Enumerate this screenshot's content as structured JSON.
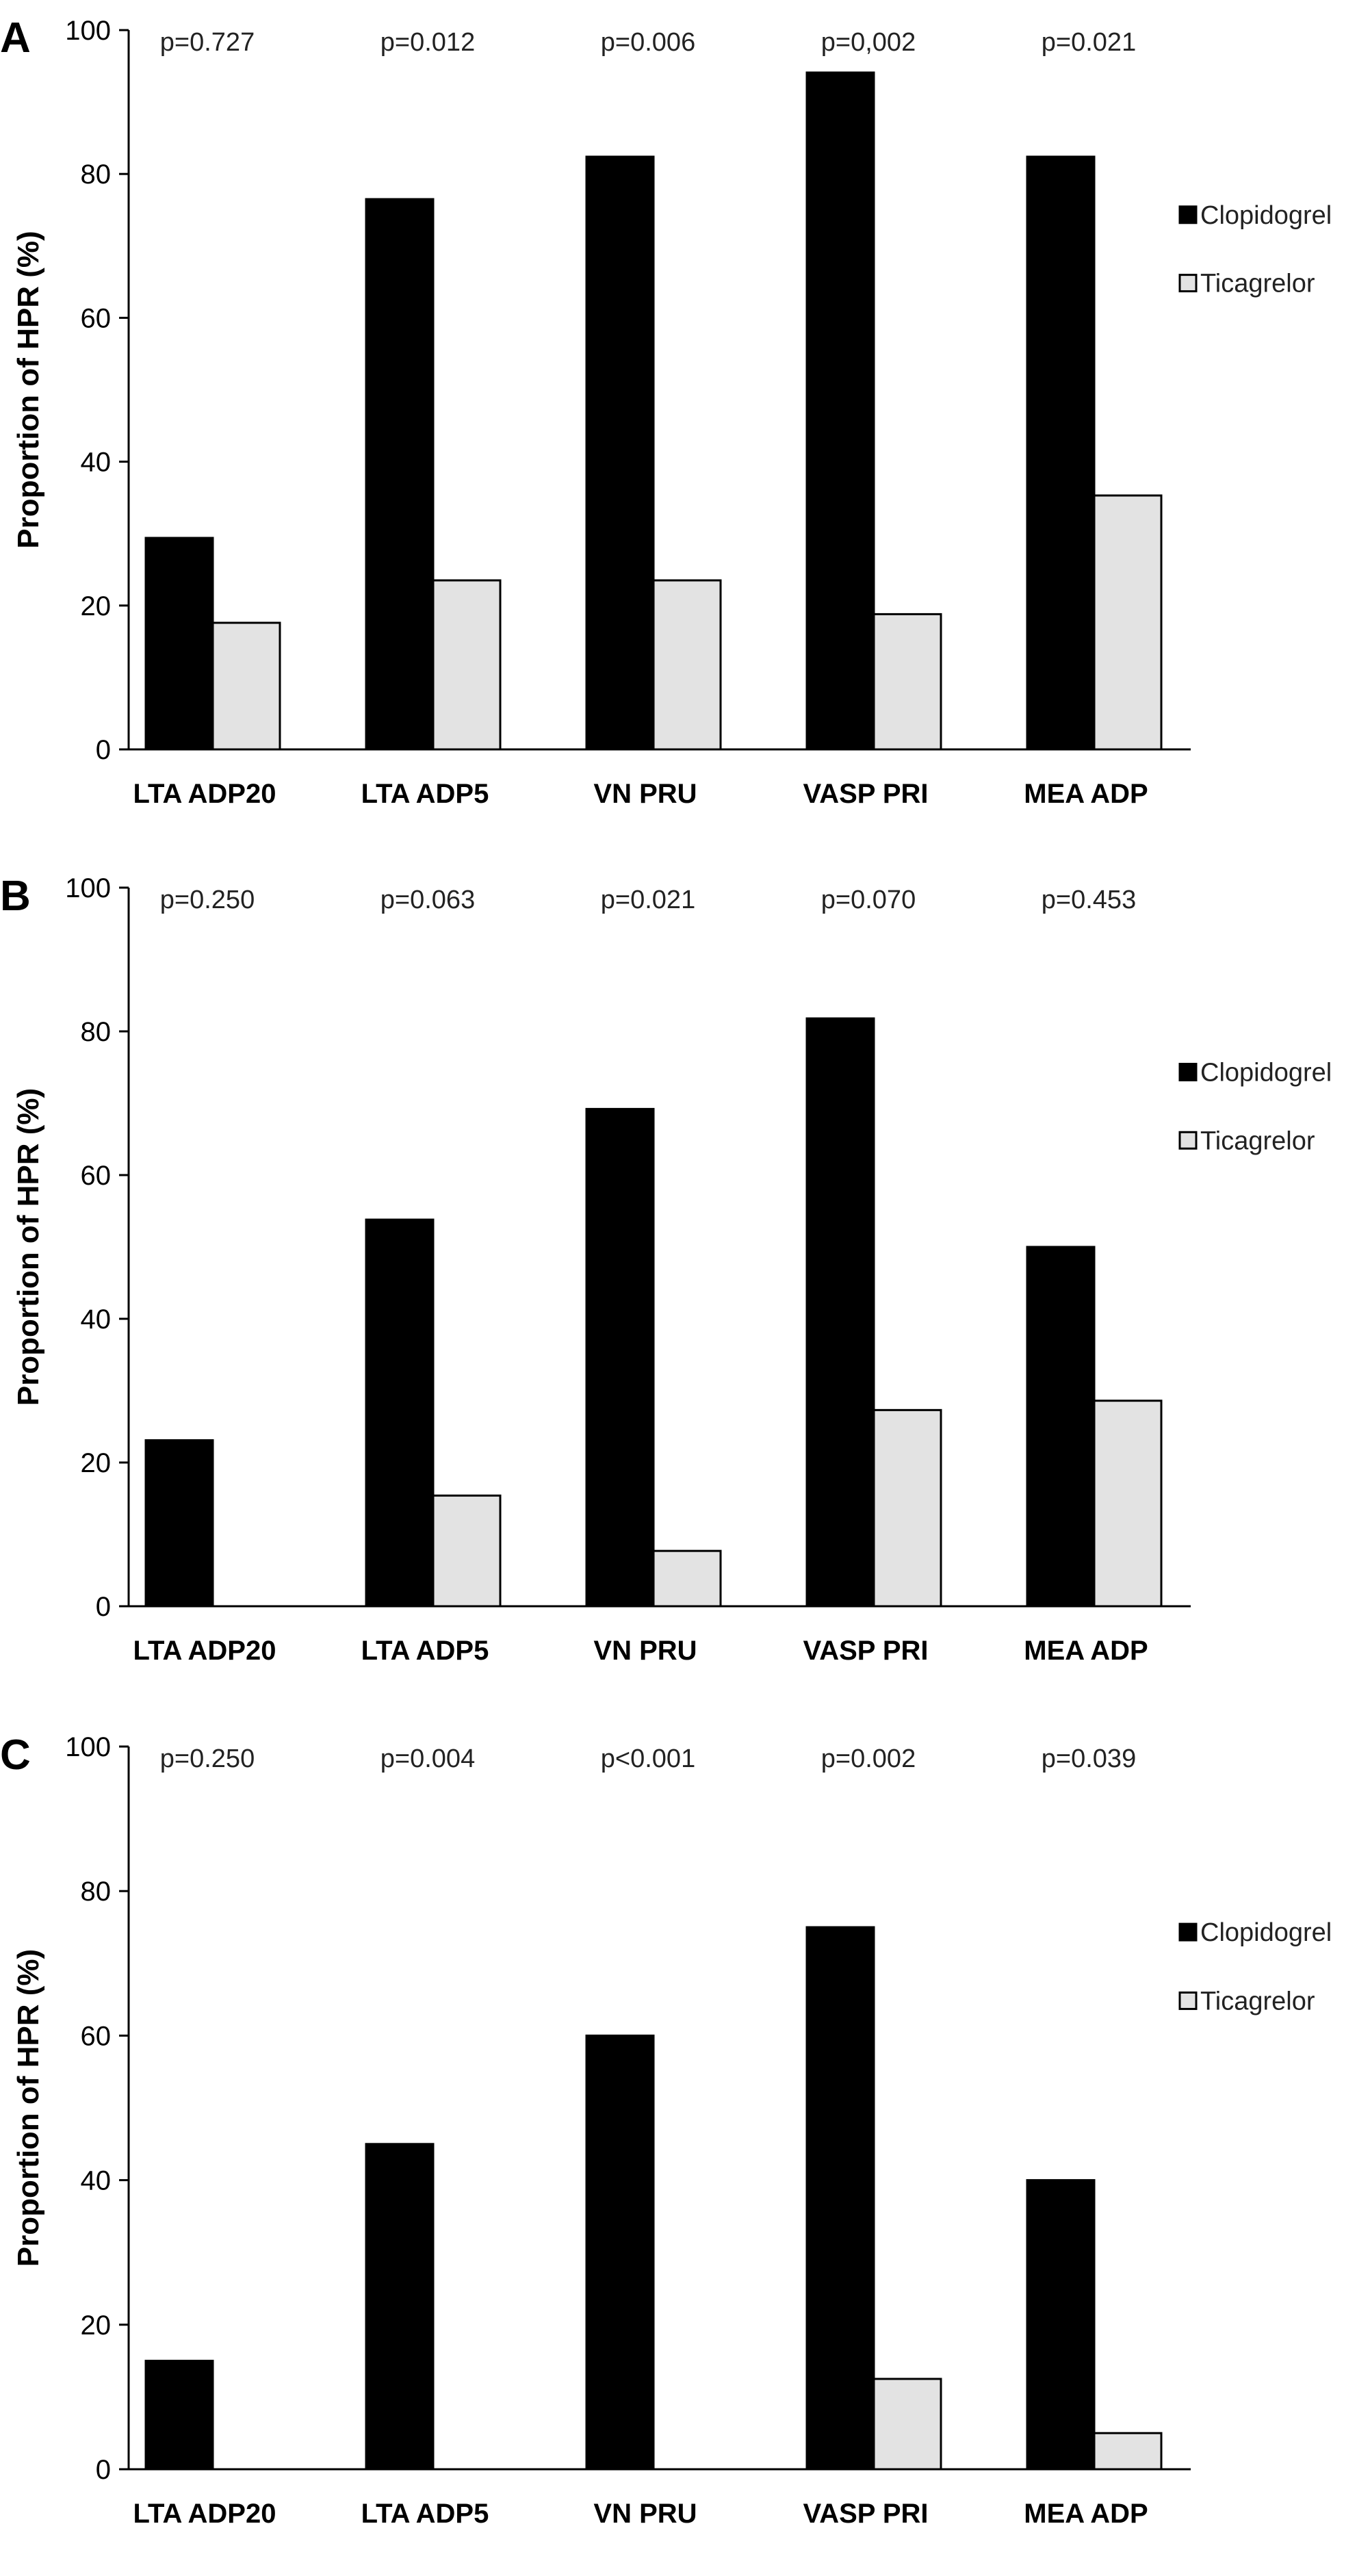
{
  "chart_data": [
    {
      "type": "bar",
      "panel": "A",
      "ylabel": "Proportion of HPR (%)",
      "ylim": [
        0,
        100
      ],
      "yticks": [
        0,
        20,
        40,
        60,
        80,
        100
      ],
      "categories": [
        "LTA ADP20",
        "LTA ADP5",
        "VN PRU",
        "VASP PRI",
        "MEA ADP"
      ],
      "p_values": [
        "p=0.727",
        "p=0.012",
        "p=0.006",
        "p=0,002",
        "p=0.021"
      ],
      "series": [
        {
          "name": "Clopidogrel",
          "color": "#000000",
          "values": [
            29.4,
            76.5,
            82.4,
            94.1,
            82.4
          ]
        },
        {
          "name": "Ticagrelor",
          "color": "#e3e3e3",
          "values": [
            17.6,
            23.5,
            23.5,
            18.8,
            35.3
          ]
        }
      ],
      "legend": "right"
    },
    {
      "type": "bar",
      "panel": "B",
      "ylabel": "Proportion of HPR (%)",
      "ylim": [
        0,
        100
      ],
      "yticks": [
        0,
        20,
        40,
        60,
        80,
        100
      ],
      "categories": [
        "LTA ADP20",
        "LTA ADP5",
        "VN PRU",
        "VASP PRI",
        "MEA ADP"
      ],
      "p_values": [
        "p=0.250",
        "p=0.063",
        "p=0.021",
        "p=0.070",
        "p=0.453"
      ],
      "series": [
        {
          "name": "Clopidogrel",
          "color": "#000000",
          "values": [
            23.1,
            53.8,
            69.2,
            81.8,
            50.0
          ]
        },
        {
          "name": "Ticagrelor",
          "color": "#e3e3e3",
          "values": [
            0,
            15.4,
            7.7,
            27.3,
            28.6
          ]
        }
      ],
      "legend": "right"
    },
    {
      "type": "bar",
      "panel": "C",
      "ylabel": "Proportion of HPR (%)",
      "ylim": [
        0,
        100
      ],
      "yticks": [
        0,
        20,
        40,
        60,
        80,
        100
      ],
      "categories": [
        "LTA ADP20",
        "LTA ADP5",
        "VN PRU",
        "VASP PRI",
        "MEA ADP"
      ],
      "p_values": [
        "p=0.250",
        "p=0.004",
        "p<0.001",
        "p=0.002",
        "p=0.039"
      ],
      "series": [
        {
          "name": "Clopidogrel",
          "color": "#000000",
          "values": [
            15.0,
            45.0,
            60.0,
            75.0,
            40.0
          ]
        },
        {
          "name": "Ticagrelor",
          "color": "#e3e3e3",
          "values": [
            0,
            0,
            0,
            12.5,
            5.0
          ]
        }
      ],
      "legend": "right"
    }
  ]
}
